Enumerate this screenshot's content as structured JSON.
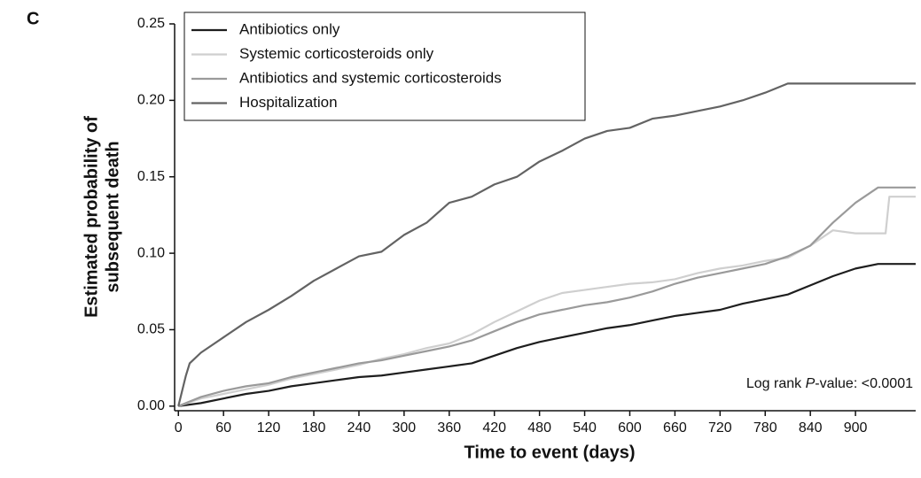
{
  "panel_label": "C",
  "chart_data": {
    "type": "line",
    "ylabel": [
      "Estimated probability of",
      "subsequent death"
    ],
    "xlabel": "Time to event (days)",
    "annotation": [
      "Log rank ",
      "P",
      "-value: <0.0001"
    ],
    "xlim": [
      -5,
      980
    ],
    "ylim": [
      -0.003,
      0.25
    ],
    "xticks": [
      0,
      60,
      120,
      180,
      240,
      300,
      360,
      420,
      480,
      540,
      600,
      660,
      720,
      780,
      840,
      900
    ],
    "yticks": [
      {
        "value": 0,
        "label": "0.00"
      },
      {
        "value": 0.05,
        "label": "0.05"
      },
      {
        "value": 0.1,
        "label": "0.10"
      },
      {
        "value": 0.15,
        "label": "0.15"
      },
      {
        "value": 0.2,
        "label": "0.20"
      },
      {
        "value": 0.25,
        "label": "0.25"
      }
    ],
    "legend": "upper left",
    "series": [
      {
        "name": "Antibiotics only",
        "color": "#1e1e1e",
        "x": [
          0,
          30,
          60,
          90,
          120,
          150,
          180,
          210,
          240,
          270,
          300,
          330,
          360,
          390,
          420,
          450,
          480,
          510,
          540,
          570,
          600,
          630,
          660,
          690,
          720,
          750,
          780,
          810,
          840,
          870,
          900,
          930,
          980
        ],
        "values": [
          0,
          0.002,
          0.005,
          0.008,
          0.01,
          0.013,
          0.015,
          0.017,
          0.019,
          0.02,
          0.022,
          0.024,
          0.026,
          0.028,
          0.033,
          0.038,
          0.042,
          0.045,
          0.048,
          0.051,
          0.053,
          0.056,
          0.059,
          0.061,
          0.063,
          0.067,
          0.07,
          0.073,
          0.079,
          0.085,
          0.09,
          0.093,
          0.093
        ]
      },
      {
        "name": "Systemic corticosteroids only",
        "color": "#cfcfcf",
        "x": [
          0,
          30,
          60,
          90,
          120,
          150,
          180,
          210,
          240,
          270,
          300,
          330,
          360,
          390,
          420,
          450,
          480,
          510,
          540,
          570,
          600,
          630,
          660,
          690,
          720,
          750,
          780,
          810,
          840,
          870,
          900,
          940,
          945,
          980
        ],
        "values": [
          0,
          0.005,
          0.008,
          0.011,
          0.014,
          0.018,
          0.021,
          0.024,
          0.027,
          0.031,
          0.034,
          0.038,
          0.041,
          0.047,
          0.055,
          0.062,
          0.069,
          0.074,
          0.076,
          0.078,
          0.08,
          0.081,
          0.083,
          0.087,
          0.09,
          0.092,
          0.095,
          0.097,
          0.105,
          0.115,
          0.113,
          0.113,
          0.137,
          0.137
        ]
      },
      {
        "name": "Antibiotics and systemic corticosteroids",
        "color": "#9a9a9a",
        "x": [
          0,
          30,
          60,
          90,
          120,
          150,
          180,
          210,
          240,
          270,
          300,
          330,
          360,
          390,
          420,
          450,
          480,
          510,
          540,
          570,
          600,
          630,
          660,
          690,
          720,
          750,
          780,
          810,
          840,
          870,
          900,
          930,
          980
        ],
        "values": [
          0,
          0.006,
          0.01,
          0.013,
          0.015,
          0.019,
          0.022,
          0.025,
          0.028,
          0.03,
          0.033,
          0.036,
          0.039,
          0.043,
          0.049,
          0.055,
          0.06,
          0.063,
          0.066,
          0.068,
          0.071,
          0.075,
          0.08,
          0.084,
          0.087,
          0.09,
          0.093,
          0.098,
          0.105,
          0.12,
          0.133,
          0.143,
          0.143
        ]
      },
      {
        "name": "Hospitalization",
        "color": "#636363",
        "x": [
          0,
          5,
          10,
          15,
          30,
          60,
          90,
          120,
          150,
          180,
          210,
          240,
          270,
          300,
          330,
          360,
          390,
          420,
          450,
          480,
          510,
          540,
          570,
          600,
          630,
          660,
          690,
          720,
          750,
          780,
          810,
          980
        ],
        "values": [
          0,
          0.01,
          0.02,
          0.028,
          0.035,
          0.045,
          0.055,
          0.063,
          0.072,
          0.082,
          0.09,
          0.098,
          0.101,
          0.112,
          0.12,
          0.133,
          0.137,
          0.145,
          0.15,
          0.16,
          0.167,
          0.175,
          0.18,
          0.182,
          0.188,
          0.19,
          0.193,
          0.196,
          0.2,
          0.205,
          0.211,
          0.211
        ]
      }
    ]
  }
}
